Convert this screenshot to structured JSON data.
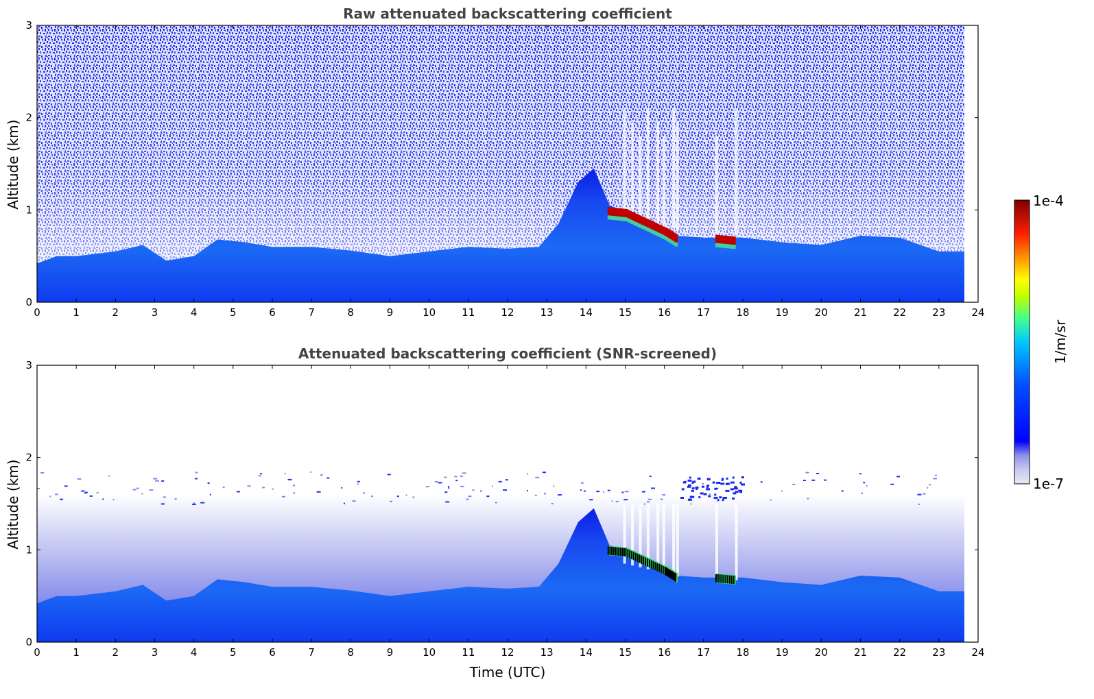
{
  "chart_data": [
    {
      "type": "heatmap",
      "title": "Raw attenuated backscattering coefficient",
      "xlabel": "",
      "ylabel": "Altitude (km)",
      "xlim": [
        0,
        24
      ],
      "ylim": [
        0,
        3
      ],
      "x_ticks": [
        0,
        1,
        2,
        3,
        4,
        5,
        6,
        7,
        8,
        9,
        10,
        11,
        12,
        13,
        14,
        15,
        16,
        17,
        18,
        19,
        20,
        21,
        22,
        23,
        24
      ],
      "y_ticks": [
        0,
        1,
        2,
        3
      ],
      "data_time_range_utc": [
        0,
        23.65
      ],
      "boundary_layer_top_km": [
        {
          "t": 0,
          "z": 0.42
        },
        {
          "t": 0.5,
          "z": 0.5
        },
        {
          "t": 1,
          "z": 0.5
        },
        {
          "t": 2,
          "z": 0.55
        },
        {
          "t": 2.7,
          "z": 0.62
        },
        {
          "t": 3.3,
          "z": 0.45
        },
        {
          "t": 4,
          "z": 0.5
        },
        {
          "t": 4.6,
          "z": 0.68
        },
        {
          "t": 5.3,
          "z": 0.65
        },
        {
          "t": 6,
          "z": 0.6
        },
        {
          "t": 7,
          "z": 0.6
        },
        {
          "t": 8,
          "z": 0.56
        },
        {
          "t": 9,
          "z": 0.5
        },
        {
          "t": 10,
          "z": 0.55
        },
        {
          "t": 11,
          "z": 0.6
        },
        {
          "t": 12,
          "z": 0.58
        },
        {
          "t": 12.8,
          "z": 0.6
        },
        {
          "t": 13.3,
          "z": 0.85
        },
        {
          "t": 13.8,
          "z": 1.3
        },
        {
          "t": 14.2,
          "z": 1.45
        },
        {
          "t": 14.6,
          "z": 1.05
        },
        {
          "t": 15.5,
          "z": 0.9
        },
        {
          "t": 16.3,
          "z": 0.72
        },
        {
          "t": 17,
          "z": 0.7
        },
        {
          "t": 18,
          "z": 0.7
        },
        {
          "t": 19,
          "z": 0.65
        },
        {
          "t": 20,
          "z": 0.62
        },
        {
          "t": 21,
          "z": 0.72
        },
        {
          "t": 22,
          "z": 0.7
        },
        {
          "t": 23,
          "z": 0.55
        },
        {
          "t": 23.65,
          "z": 0.55
        }
      ],
      "cloud_layer": [
        {
          "t": 14.55,
          "z": 1.0
        },
        {
          "t": 15.0,
          "z": 0.98
        },
        {
          "t": 15.5,
          "z": 0.88
        },
        {
          "t": 16.0,
          "z": 0.78
        },
        {
          "t": 16.3,
          "z": 0.7
        },
        {
          "t": 17.3,
          "z": 0.7
        },
        {
          "t": 17.8,
          "z": 0.68
        }
      ]
    },
    {
      "type": "heatmap",
      "title": "Attenuated backscattering coefficient (SNR-screened)",
      "xlabel": "Time (UTC)",
      "ylabel": "Altitude (km)",
      "xlim": [
        0,
        24
      ],
      "ylim": [
        0,
        3
      ],
      "x_ticks": [
        0,
        1,
        2,
        3,
        4,
        5,
        6,
        7,
        8,
        9,
        10,
        11,
        12,
        13,
        14,
        15,
        16,
        17,
        18,
        19,
        20,
        21,
        22,
        23,
        24
      ],
      "y_ticks": [
        0,
        1,
        2,
        3
      ],
      "data_time_range_utc": [
        0,
        23.65
      ],
      "screened_upper_limit_km": 1.6
    }
  ],
  "colorbar": {
    "label": "1/m/sr",
    "max_label": "1e-4",
    "min_label": "1e-7",
    "scale": "log",
    "colormap": [
      "#e8e8f8",
      "#c8c8f0",
      "#9090e8",
      "#0000ff",
      "#0040ff",
      "#00a0ff",
      "#00e0ff",
      "#40ff80",
      "#c0ff00",
      "#ffff00",
      "#ffa000",
      "#ff3000",
      "#d00000",
      "#800000"
    ]
  },
  "colors": {
    "raw_noise": "#1a2af0",
    "boundary_layer_deep": "#0a1ee6",
    "boundary_layer_light": "#1e6ef5",
    "cloud_red": "#c00000",
    "cloud_black": "#000000"
  }
}
